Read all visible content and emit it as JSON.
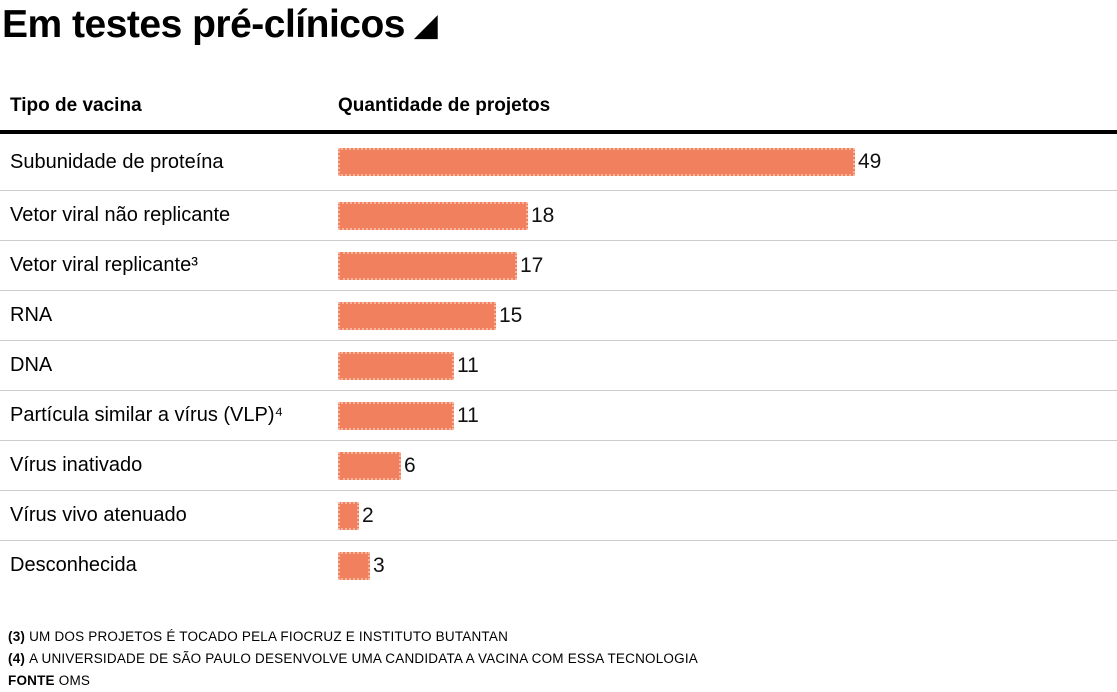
{
  "title": {
    "text": "Em testes pré-clínicos",
    "icon": "◢"
  },
  "table": {
    "col_type": "Tipo de vacina",
    "col_quantity": "Quantidade de projetos"
  },
  "chart_data": {
    "type": "bar",
    "orientation": "horizontal",
    "title": "Em testes pré-clínicos",
    "xlabel": "Quantidade de projetos",
    "ylabel": "Tipo de vacina",
    "categories": [
      "Subunidade de proteína",
      "Vetor viral não replicante",
      "Vetor viral replicante³",
      "RNA",
      "DNA",
      "Partícula similar a vírus (VLP)⁴",
      "Vírus inativado",
      "Vírus vivo atenuado",
      "Desconhecida"
    ],
    "values": [
      49,
      18,
      17,
      15,
      11,
      11,
      6,
      2,
      3
    ],
    "xlim": [
      0,
      49
    ],
    "bar_color": "#f1805f",
    "bar_edge_color": "#f8b69e",
    "grid": false,
    "legend": "none",
    "value_labels": true
  },
  "footnotes": [
    {
      "prefix": "(3)",
      "text": "UM DOS PROJETOS É TOCADO PELA FIOCRUZ E INSTITUTO BUTANTAN"
    },
    {
      "prefix": "(4)",
      "text": "A UNIVERSIDADE DE SÃO PAULO DESENVOLVE UMA CANDIDATA A VACINA COM ESSA TECNOLOGIA"
    },
    {
      "prefix": "FONTE",
      "text": "OMS"
    }
  ]
}
